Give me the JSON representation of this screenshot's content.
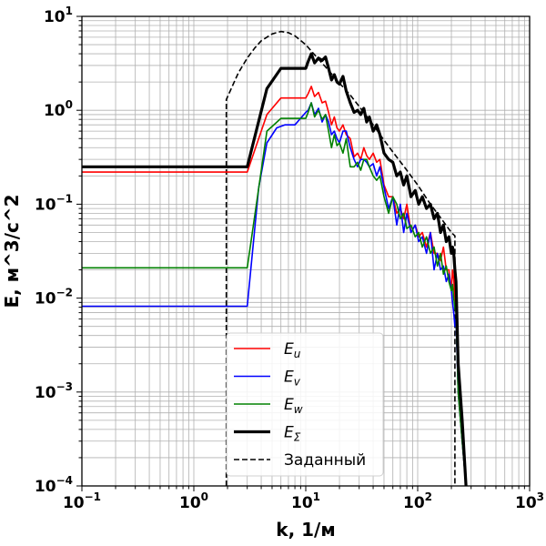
{
  "chart_data": {
    "type": "line",
    "title": "",
    "xlabel": "k, 1/м",
    "ylabel": "E, м^3/с^2",
    "xscale": "log",
    "yscale": "log",
    "xlim": [
      0.1,
      1000
    ],
    "ylim": [
      0.0001,
      10
    ],
    "grid": true,
    "legend_position": "lower-center",
    "x_tick_labels": [
      {
        "base": "10",
        "exp": "−1"
      },
      {
        "base": "10",
        "exp": "0"
      },
      {
        "base": "10",
        "exp": "1"
      },
      {
        "base": "10",
        "exp": "2"
      },
      {
        "base": "10",
        "exp": "3"
      }
    ],
    "y_tick_labels": [
      {
        "base": "10",
        "exp": "−4"
      },
      {
        "base": "10",
        "exp": "−3"
      },
      {
        "base": "10",
        "exp": "−2"
      },
      {
        "base": "10",
        "exp": "−1"
      },
      {
        "base": "10",
        "exp": "0"
      },
      {
        "base": "10",
        "exp": "1"
      }
    ],
    "series": [
      {
        "name": "E_u",
        "label_main": "E",
        "label_sub": "u",
        "color": "#ff0000",
        "style": "solid",
        "width": "normal",
        "x": [
          0.1,
          3.0,
          4.5,
          6.0,
          8.0,
          10.0,
          10.5,
          11.2,
          12.0,
          13.0,
          14.0,
          15.0,
          16.0,
          17.0,
          18.0,
          19.0,
          20.0,
          21.5,
          23.0,
          25.0,
          27.0,
          29.0,
          31.0,
          33.0,
          35.0,
          37.0,
          40.0,
          43.0,
          46.0,
          50.0,
          55.0,
          60.0,
          65.0,
          70.0,
          75.0,
          80.0,
          87.0,
          95.0,
          102.0,
          110.0,
          120.0,
          130.0,
          140.0,
          150.0,
          160.0,
          170.0,
          180.0,
          190.0,
          200.0,
          205.0,
          210.0,
          215.0,
          220.0,
          230.0,
          250.0,
          270.0
        ],
        "y": [
          0.22,
          0.22,
          0.9,
          1.35,
          1.35,
          1.35,
          1.5,
          1.8,
          1.4,
          1.55,
          1.2,
          1.25,
          0.95,
          0.7,
          0.85,
          0.65,
          0.6,
          0.7,
          0.55,
          0.5,
          0.32,
          0.35,
          0.3,
          0.4,
          0.33,
          0.3,
          0.35,
          0.28,
          0.3,
          0.16,
          0.12,
          0.12,
          0.08,
          0.09,
          0.07,
          0.1,
          0.05,
          0.06,
          0.045,
          0.05,
          0.035,
          0.05,
          0.03,
          0.03,
          0.025,
          0.035,
          0.02,
          0.02,
          0.012,
          0.02,
          0.016,
          0.01,
          0.0075,
          0.001,
          0.0003,
          0.0001
        ]
      },
      {
        "name": "E_v",
        "label_main": "E",
        "label_sub": "v",
        "color": "#0000ff",
        "style": "solid",
        "width": "normal",
        "x": [
          0.1,
          3.0,
          3.8,
          4.5,
          5.5,
          6.5,
          8.0,
          10.0,
          10.5,
          11.2,
          12.0,
          13.0,
          14.0,
          15.0,
          16.0,
          17.0,
          18.0,
          19.0,
          20.0,
          21.5,
          23.0,
          25.0,
          27.0,
          29.0,
          31.0,
          33.0,
          35.0,
          37.0,
          40.0,
          43.0,
          46.0,
          50.0,
          55.0,
          60.0,
          65.0,
          70.0,
          75.0,
          80.0,
          87.0,
          95.0,
          102.0,
          110.0,
          120.0,
          130.0,
          140.0,
          150.0,
          160.0,
          170.0,
          180.0,
          190.0,
          200.0,
          205.0,
          210.0,
          215.0,
          220.0,
          230.0,
          250.0,
          270.0
        ],
        "y": [
          0.0082,
          0.0082,
          0.15,
          0.45,
          0.65,
          0.7,
          0.7,
          0.95,
          1.0,
          1.2,
          0.9,
          1.05,
          0.75,
          0.9,
          0.75,
          0.55,
          0.6,
          0.5,
          0.45,
          0.6,
          0.6,
          0.4,
          0.3,
          0.25,
          0.3,
          0.3,
          0.28,
          0.25,
          0.27,
          0.2,
          0.25,
          0.15,
          0.09,
          0.12,
          0.06,
          0.1,
          0.05,
          0.08,
          0.05,
          0.06,
          0.04,
          0.045,
          0.03,
          0.05,
          0.02,
          0.03,
          0.02,
          0.022,
          0.015,
          0.018,
          0.012,
          0.009,
          0.007,
          0.005,
          0.006,
          0.001,
          0.0003,
          0.0001
        ]
      },
      {
        "name": "E_w",
        "label_main": "E",
        "label_sub": "w",
        "color": "#008000",
        "style": "solid",
        "width": "normal",
        "x": [
          0.1,
          3.0,
          4.5,
          6.0,
          8.0,
          10.0,
          10.5,
          11.2,
          12.0,
          13.0,
          14.0,
          15.0,
          16.0,
          17.0,
          18.0,
          19.0,
          20.0,
          21.5,
          23.0,
          25.0,
          27.0,
          29.0,
          31.0,
          33.0,
          35.0,
          37.0,
          40.0,
          43.0,
          46.0,
          50.0,
          55.0,
          60.0,
          65.0,
          70.0,
          75.0,
          80.0,
          87.0,
          95.0,
          102.0,
          110.0,
          120.0,
          130.0,
          140.0,
          150.0,
          160.0,
          170.0,
          180.0,
          190.0,
          200.0,
          205.0,
          210.0,
          215.0,
          220.0,
          230.0,
          250.0,
          270.0
        ],
        "y": [
          0.021,
          0.021,
          0.6,
          0.82,
          0.82,
          0.82,
          0.95,
          1.2,
          0.85,
          1.0,
          0.8,
          0.9,
          0.6,
          0.4,
          0.55,
          0.42,
          0.45,
          0.35,
          0.5,
          0.25,
          0.25,
          0.28,
          0.23,
          0.3,
          0.3,
          0.25,
          0.2,
          0.18,
          0.2,
          0.12,
          0.08,
          0.12,
          0.1,
          0.07,
          0.08,
          0.055,
          0.06,
          0.045,
          0.05,
          0.035,
          0.045,
          0.03,
          0.035,
          0.022,
          0.03,
          0.018,
          0.022,
          0.015,
          0.012,
          0.014,
          0.01,
          0.008,
          0.007,
          0.001,
          0.0003,
          0.0001
        ]
      },
      {
        "name": "E_Σ",
        "label_main": "E",
        "label_sub": "Σ",
        "color": "#000000",
        "style": "solid",
        "width": "thick",
        "x": [
          0.1,
          3.0,
          4.5,
          6.0,
          8.0,
          10.0,
          10.5,
          11.2,
          12.0,
          13.0,
          14.0,
          15.0,
          16.0,
          17.0,
          18.0,
          19.0,
          20.0,
          21.5,
          23.0,
          25.0,
          27.0,
          29.0,
          31.0,
          33.0,
          35.0,
          37.0,
          40.0,
          43.0,
          46.0,
          50.0,
          55.0,
          60.0,
          65.0,
          70.0,
          75.0,
          80.0,
          87.0,
          95.0,
          102.0,
          110.0,
          120.0,
          130.0,
          140.0,
          150.0,
          160.0,
          170.0,
          180.0,
          190.0,
          200.0,
          205.0,
          210.0,
          215.0,
          220.0,
          230.0,
          250.0,
          270.0
        ],
        "y": [
          0.25,
          0.25,
          1.7,
          2.8,
          2.8,
          2.8,
          3.3,
          4.0,
          3.2,
          3.6,
          3.4,
          3.7,
          2.8,
          2.1,
          2.4,
          2.0,
          1.9,
          2.3,
          1.6,
          1.2,
          0.95,
          1.0,
          0.9,
          1.05,
          0.75,
          0.85,
          0.6,
          0.7,
          0.55,
          0.35,
          0.3,
          0.28,
          0.2,
          0.22,
          0.16,
          0.2,
          0.12,
          0.14,
          0.1,
          0.12,
          0.09,
          0.1,
          0.07,
          0.08,
          0.05,
          0.06,
          0.04,
          0.045,
          0.03,
          0.035,
          0.03,
          0.02,
          0.015,
          0.002,
          0.0005,
          0.0001
        ]
      },
      {
        "name": "Заданный",
        "label_main": "Заданный",
        "label_sub": "",
        "color": "#000000",
        "style": "dashed",
        "width": "normal",
        "x": [
          1.95,
          1.95,
          2.5,
          3.0,
          3.5,
          4.0,
          5.0,
          6.0,
          7.0,
          8.0,
          10.0,
          12.0,
          15.0,
          20.0,
          25.0,
          30.0,
          40.0,
          50.0,
          60.0,
          80.0,
          100.0,
          130.0,
          160.0,
          200.0,
          215.0,
          215.0
        ],
        "y": [
          0.0001,
          1.3,
          2.5,
          3.6,
          4.6,
          5.5,
          6.5,
          6.9,
          6.7,
          6.2,
          5.0,
          3.9,
          2.9,
          1.95,
          1.45,
          1.1,
          0.7,
          0.48,
          0.36,
          0.23,
          0.16,
          0.1,
          0.072,
          0.05,
          0.046,
          0.0001
        ]
      }
    ]
  }
}
